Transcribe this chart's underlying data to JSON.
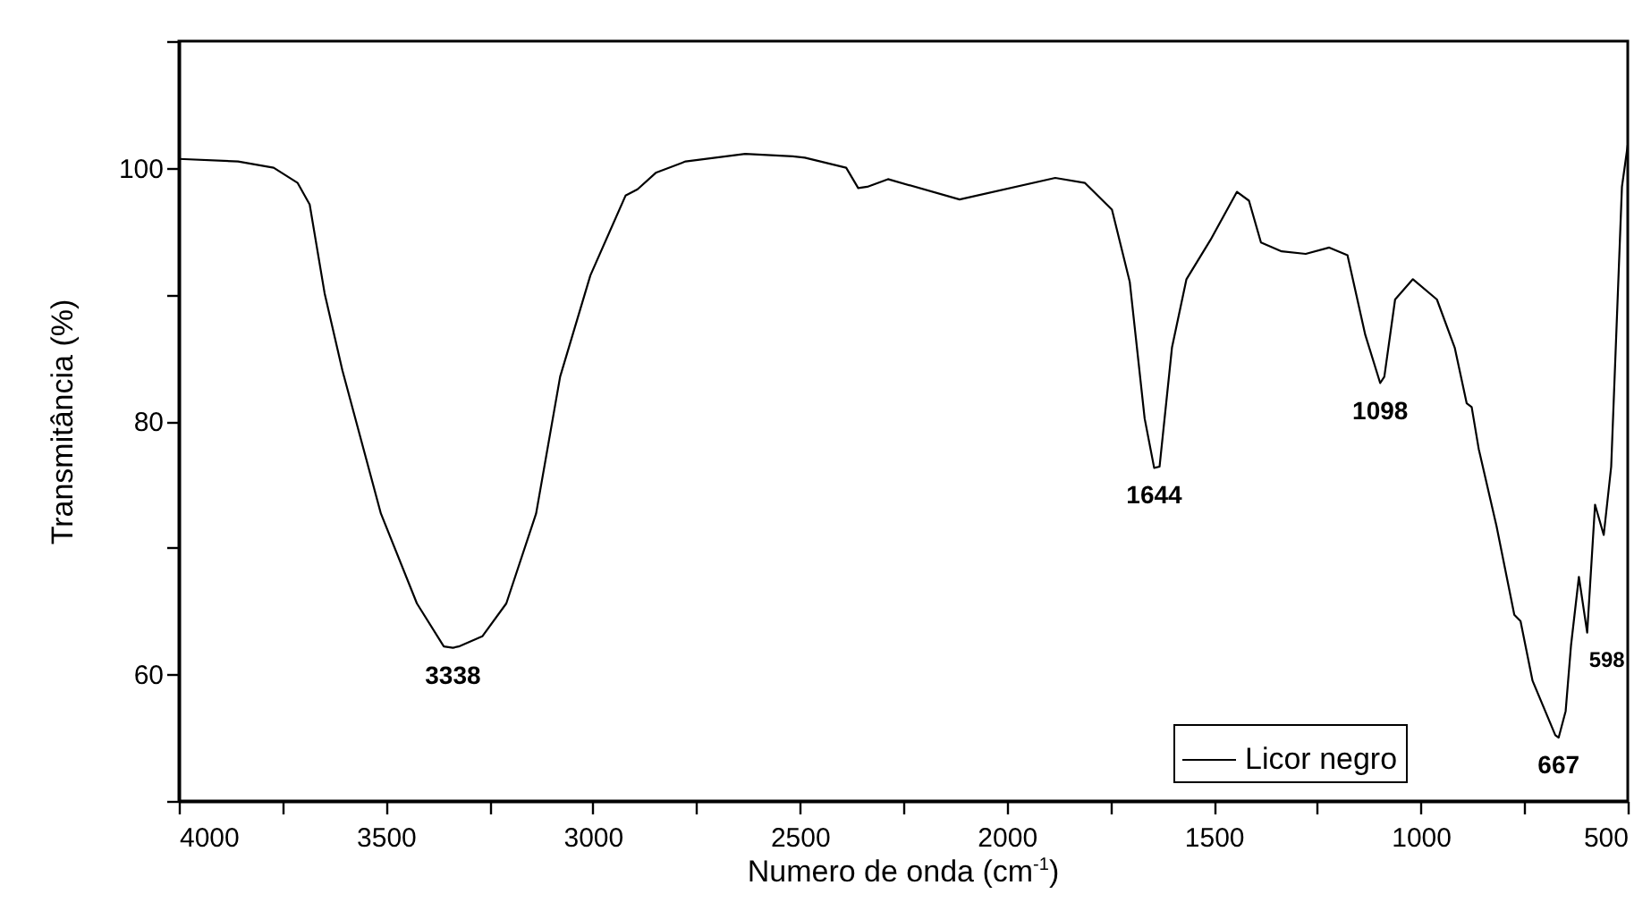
{
  "chart_data": {
    "type": "line",
    "xlabel": "Numero de onda (cm$^{-1}$)",
    "ylabel": "Transmitância (%)",
    "x": [
      4000,
      3857,
      3771,
      3713,
      3684,
      3648,
      3605,
      3512,
      3425,
      3360,
      3338,
      3324,
      3267,
      3209,
      3137,
      3079,
      3006,
      2921,
      2892,
      2848,
      2776,
      2632,
      2517,
      2488,
      2388,
      2359,
      2337,
      2287,
      2114,
      1883,
      1811,
      1746,
      1703,
      1667,
      1644,
      1631,
      1601,
      1566,
      1508,
      1444,
      1415,
      1386,
      1336,
      1278,
      1221,
      1177,
      1134,
      1098,
      1088,
      1062,
      1019,
      961,
      918,
      889,
      877,
      860,
      817,
      774,
      759,
      730,
      675,
      667,
      650,
      637,
      618,
      598,
      579,
      558,
      540,
      514,
      500
    ],
    "series": [
      {
        "name": "Licor negro",
        "color": "#000000",
        "values": [
          100.7,
          100.5,
          100.0,
          98.8,
          97.1,
          90.1,
          84.0,
          72.7,
          65.6,
          62.2,
          62.1,
          62.2,
          63.0,
          65.6,
          72.7,
          83.5,
          91.5,
          97.8,
          98.3,
          99.6,
          100.5,
          101.1,
          100.9,
          100.8,
          100.0,
          98.4,
          98.5,
          99.1,
          97.5,
          99.2,
          98.8,
          96.7,
          91.0,
          80.2,
          76.3,
          76.4,
          85.8,
          91.2,
          94.3,
          98.1,
          97.4,
          94.1,
          93.4,
          93.2,
          93.7,
          93.1,
          86.8,
          83.0,
          83.5,
          89.6,
          91.2,
          89.6,
          85.8,
          81.4,
          81.1,
          77.8,
          71.7,
          64.7,
          64.2,
          59.5,
          55.2,
          55.0,
          57.1,
          62.3,
          67.7,
          63.3,
          73.4,
          71.0,
          76.4,
          98.5,
          101.8
        ]
      }
    ],
    "xlim": [
      4000,
      500
    ],
    "xticks": [
      4000,
      {
        "value": 3750,
        "label": null
      },
      3500,
      {
        "value": 3250,
        "label": null
      },
      3000,
      {
        "value": 2750,
        "label": null
      },
      2500,
      {
        "value": 2250,
        "label": null
      },
      2000,
      {
        "value": 1750,
        "label": null
      },
      1500,
      {
        "value": 1250,
        "label": null
      },
      1000,
      {
        "value": 750,
        "label": null
      },
      500
    ],
    "ylim": [
      50,
      110
    ],
    "yticks": [
      {
        "value": 50,
        "label": null
      },
      60,
      {
        "value": 70,
        "label": null
      },
      80,
      {
        "value": 90,
        "label": null
      },
      100,
      {
        "value": 110,
        "label": null
      }
    ],
    "grid": false,
    "legend": "bottom right",
    "marker": "none",
    "line_style": "solid",
    "annotations": [
      {
        "text": "3338",
        "x": 3338,
        "y": 62.1
      },
      {
        "text": "1644",
        "x": 1644,
        "y": 76.3
      },
      {
        "text": "1098",
        "x": 1098,
        "y": 83.0
      },
      {
        "text": "667",
        "x": 667,
        "y": 55.0
      },
      {
        "text": "598",
        "x": 598,
        "y": 63.3
      }
    ]
  }
}
